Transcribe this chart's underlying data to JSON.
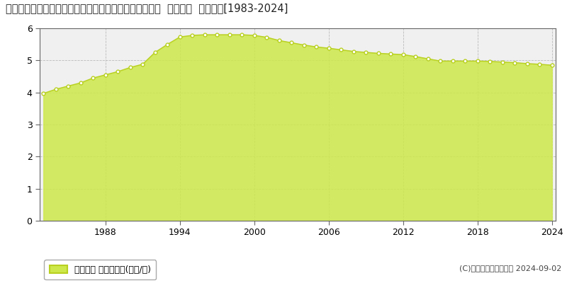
{
  "title": "栃木県下都賀郡壬生町大字安塚字西原２３８９番１１外  地価公示  地価推移[1983-2024]",
  "years": [
    1983,
    1984,
    1985,
    1986,
    1987,
    1988,
    1989,
    1990,
    1991,
    1992,
    1993,
    1994,
    1995,
    1996,
    1997,
    1998,
    1999,
    2000,
    2001,
    2002,
    2003,
    2004,
    2005,
    2006,
    2007,
    2008,
    2009,
    2010,
    2011,
    2012,
    2013,
    2014,
    2015,
    2016,
    2017,
    2018,
    2019,
    2020,
    2021,
    2022,
    2023,
    2024
  ],
  "values": [
    3.97,
    4.1,
    4.2,
    4.3,
    4.45,
    4.55,
    4.65,
    4.78,
    4.88,
    5.25,
    5.5,
    5.73,
    5.78,
    5.8,
    5.8,
    5.8,
    5.8,
    5.78,
    5.72,
    5.62,
    5.55,
    5.48,
    5.42,
    5.38,
    5.33,
    5.28,
    5.25,
    5.22,
    5.2,
    5.18,
    5.12,
    5.05,
    4.98,
    4.98,
    4.98,
    4.98,
    4.97,
    4.95,
    4.93,
    4.9,
    4.88,
    4.85
  ],
  "fill_color": "#cde84a",
  "fill_alpha": 0.85,
  "line_color": "#b8d020",
  "marker_face": "#ffffff",
  "marker_edge": "#b8d020",
  "ylim": [
    0,
    6
  ],
  "yticks": [
    0,
    1,
    2,
    3,
    4,
    5,
    6
  ],
  "xticks": [
    1988,
    1994,
    2000,
    2006,
    2012,
    2018,
    2024
  ],
  "bg_color": "#ffffff",
  "plot_bg_color": "#f0f0f0",
  "grid_h_color": "#bbbbbb",
  "grid_v_color": "#bbbbbb",
  "legend_label": "地価公示 平均坪単価(万円/坪)",
  "copyright_text": "(C)土地価格ドットコム 2024-09-02",
  "title_fontsize": 10.5,
  "tick_fontsize": 9,
  "legend_fontsize": 9,
  "copyright_fontsize": 8
}
